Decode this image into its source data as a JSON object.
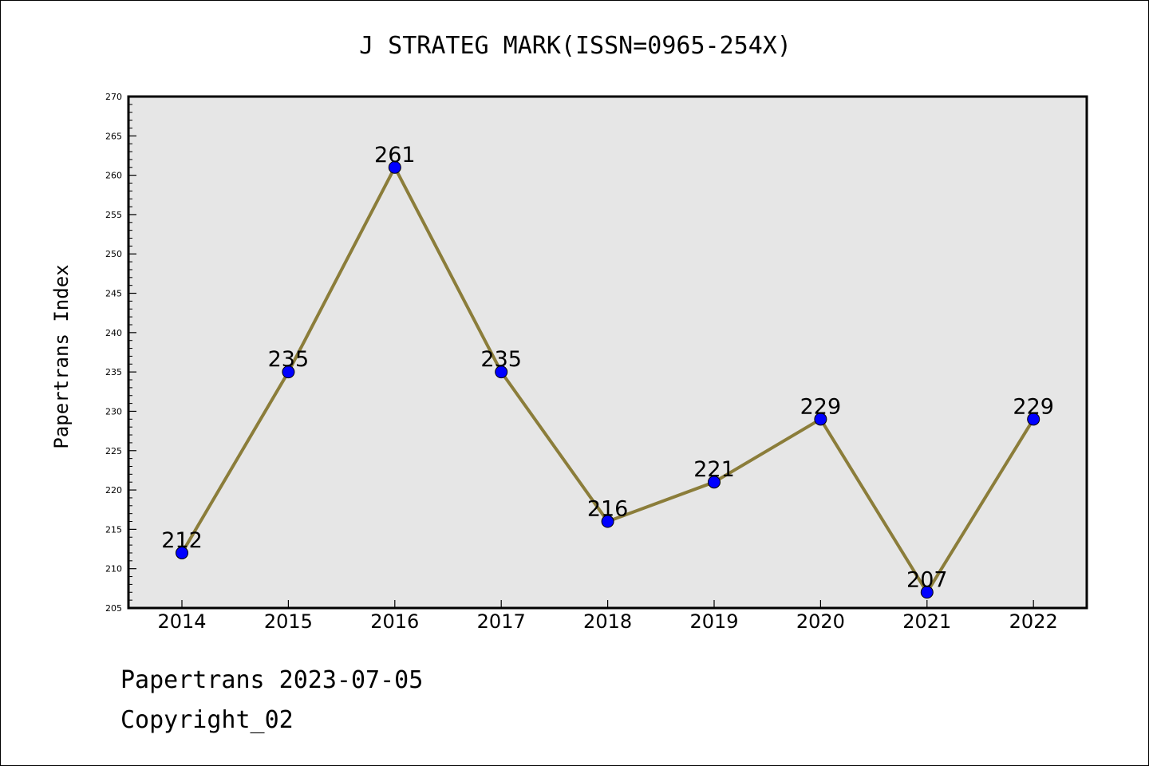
{
  "chart_data": {
    "type": "line",
    "title": "J STRATEG MARK(ISSN=0965-254X)",
    "xlabel": "",
    "ylabel": "Papertrans Index",
    "x": [
      "2014",
      "2015",
      "2016",
      "2017",
      "2018",
      "2019",
      "2020",
      "2021",
      "2022"
    ],
    "series": [
      {
        "values": [
          212,
          235,
          261,
          235,
          216,
          221,
          229,
          207,
          229
        ]
      }
    ],
    "data_labels": [
      "212",
      "235",
      "261",
      "235",
      "216",
      "221",
      "229",
      "207",
      "229"
    ],
    "ylim": [
      205,
      270
    ],
    "yticks": [
      205,
      210,
      215,
      220,
      225,
      230,
      235,
      240,
      245,
      250,
      255,
      260,
      265,
      270
    ],
    "ytick_labels": [
      "205",
      "210",
      "215",
      "220",
      "225",
      "230",
      "235",
      "240",
      "245",
      "250",
      "255",
      "260",
      "265",
      "270"
    ],
    "grid": false,
    "colors": {
      "line": "#8B7D3A",
      "marker": "#0000FF",
      "plot_background": "#E6E6E6"
    }
  },
  "footer": {
    "source": "Papertrans 2023-07-05",
    "copyright": "Copyright_02"
  }
}
